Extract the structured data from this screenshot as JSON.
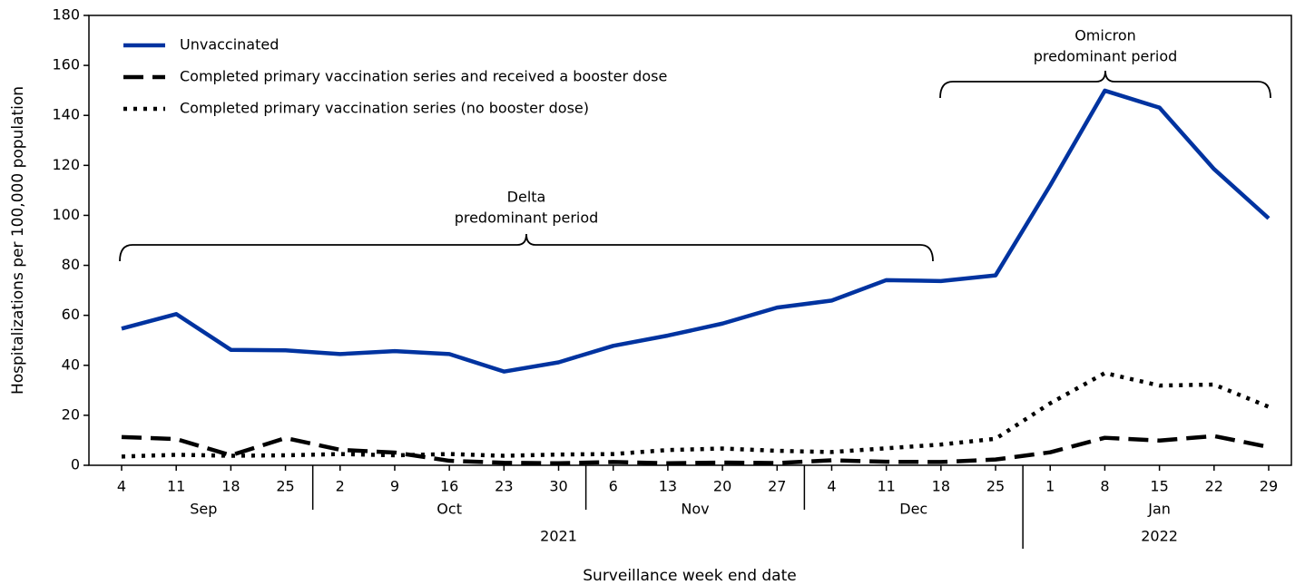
{
  "chart_data": {
    "type": "line",
    "y_label": "Hospitalizations per 100,000 population",
    "x_label": "Surveillance week end date",
    "x_axis": {
      "years": [
        {
          "label": "2021",
          "months": [
            {
              "label": "Sep",
              "days": [
                "4",
                "11",
                "18",
                "25"
              ]
            },
            {
              "label": "Oct",
              "days": [
                "2",
                "9",
                "16",
                "23",
                "30"
              ]
            },
            {
              "label": "Nov",
              "days": [
                "6",
                "13",
                "20",
                "27"
              ]
            },
            {
              "label": "Dec",
              "days": [
                "4",
                "11",
                "18",
                "25"
              ]
            }
          ]
        },
        {
          "label": "2022",
          "months": [
            {
              "label": "Jan",
              "days": [
                "1",
                "8",
                "15",
                "22",
                "29"
              ]
            }
          ]
        }
      ]
    },
    "ylim": [
      0,
      180
    ],
    "yticks": [
      0,
      20,
      40,
      60,
      80,
      100,
      120,
      140,
      160,
      180
    ],
    "series": [
      {
        "name": "Unvaccinated",
        "color": "#0033a0",
        "dash": "solid",
        "values": [
          54.7,
          60.5,
          46.2,
          46.0,
          44.5,
          45.7,
          44.5,
          37.5,
          41.2,
          47.8,
          51.9,
          56.7,
          63.1,
          65.9,
          74.1,
          73.7,
          76.0,
          112,
          149.9,
          143.1,
          118.5,
          98.8
        ]
      },
      {
        "name": "Completed primary vaccination series and received a booster dose",
        "color": "#000000",
        "dash": "dashed",
        "values": [
          11.3,
          10.5,
          4.0,
          10.9,
          6.2,
          5.1,
          1.8,
          1.0,
          0.8,
          1.3,
          0.8,
          1.1,
          0.9,
          2.0,
          1.4,
          1.3,
          2.3,
          5.2,
          11.0,
          9.9,
          11.7,
          7.3
        ]
      },
      {
        "name": "Completed primary vaccination series (no booster dose)",
        "color": "#000000",
        "dash": "dotted",
        "values": [
          3.5,
          4.2,
          3.8,
          4.0,
          4.5,
          4.0,
          4.5,
          3.8,
          4.3,
          4.5,
          6.1,
          6.7,
          5.8,
          5.3,
          6.8,
          8.3,
          10.6,
          24.8,
          36.9,
          31.9,
          32.3,
          23.4
        ]
      }
    ],
    "annotations": [
      {
        "lines": [
          "Delta",
          "predominant period"
        ]
      },
      {
        "lines": [
          "Omicron",
          "predominant period"
        ]
      }
    ]
  }
}
